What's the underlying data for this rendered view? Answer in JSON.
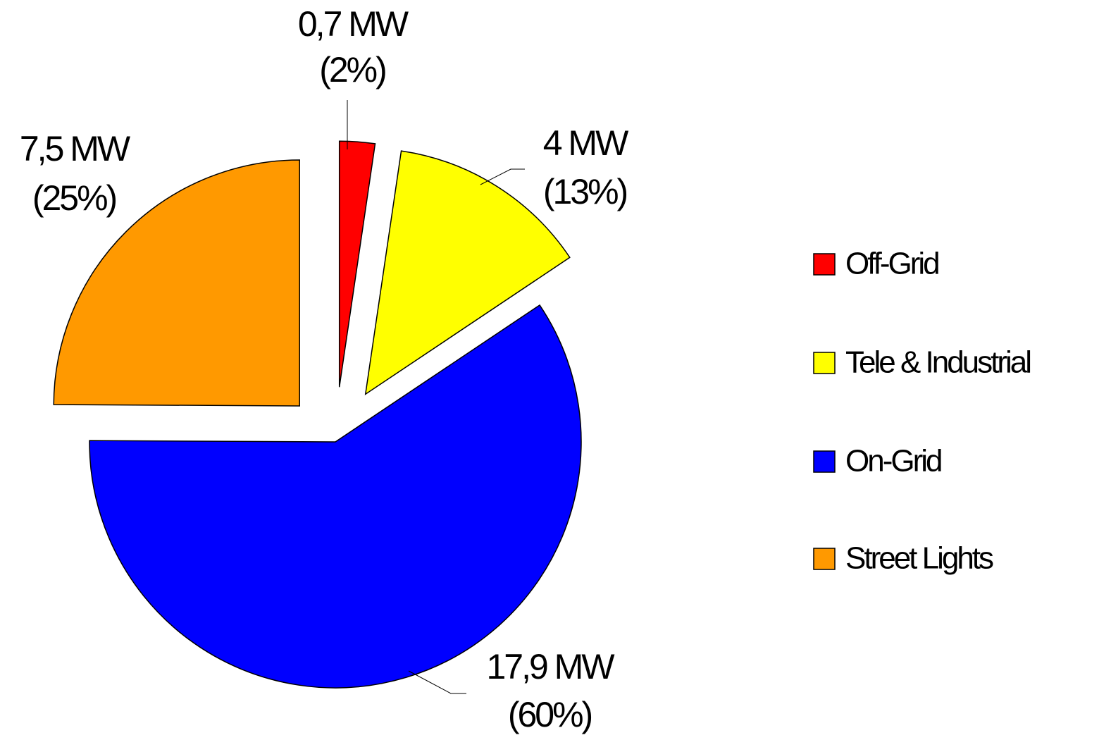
{
  "chart_data": {
    "type": "pie",
    "categories": [
      "Off-Grid",
      "Tele & Industrial",
      "On-Grid",
      "Street Lights"
    ],
    "values": [
      0.7,
      4,
      17.9,
      7.5
    ],
    "value_labels": [
      "0,7 MW",
      "4 MW",
      "17,9 MW",
      "7,5 MW"
    ],
    "percent_labels": [
      "(2%)",
      "(13%)",
      "(60%)",
      "(25%)"
    ],
    "colors": [
      "#ff0000",
      "#ffff00",
      "#0000ff",
      "#ff9900"
    ],
    "legend": "right"
  }
}
